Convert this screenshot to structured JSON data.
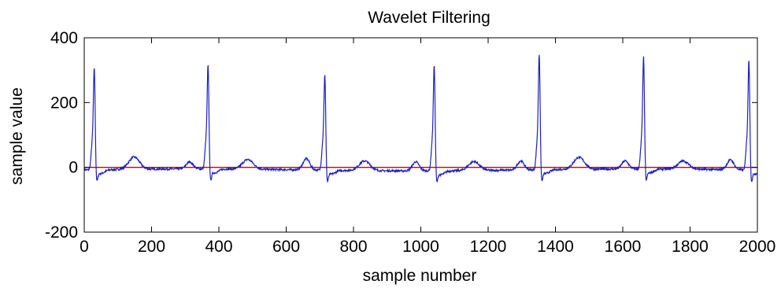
{
  "chart_data": {
    "type": "line",
    "title": "Wavelet Filtering",
    "xlabel": "sample number",
    "ylabel": "sample value",
    "xlim": [
      0,
      2000
    ],
    "ylim": [
      -200,
      400
    ],
    "xticks": [
      0,
      200,
      400,
      600,
      800,
      1000,
      1200,
      1400,
      1600,
      1800,
      2000
    ],
    "yticks": [
      -200,
      0,
      200,
      400
    ],
    "grid": false,
    "colors": {
      "signal": "#1f1fbf",
      "baseline": "#cc0000",
      "frame": "#000000"
    },
    "beats": [
      {
        "r_sample": 30,
        "peak": 292,
        "p_wave": 40,
        "t_wave": 38
      },
      {
        "r_sample": 368,
        "peak": 297,
        "p_wave": 22,
        "t_wave": 30
      },
      {
        "r_sample": 715,
        "peak": 270,
        "p_wave": 35,
        "t_wave": 30
      },
      {
        "r_sample": 1040,
        "peak": 303,
        "p_wave": 28,
        "t_wave": 28
      },
      {
        "r_sample": 1352,
        "peak": 335,
        "p_wave": 28,
        "t_wave": 37
      },
      {
        "r_sample": 1662,
        "peak": 323,
        "p_wave": 25,
        "t_wave": 25
      },
      {
        "r_sample": 1975,
        "peak": 315,
        "p_wave": 30,
        "t_wave": 0
      }
    ],
    "series": [
      {
        "type": "line",
        "baseline_value": 0
      }
    ]
  }
}
